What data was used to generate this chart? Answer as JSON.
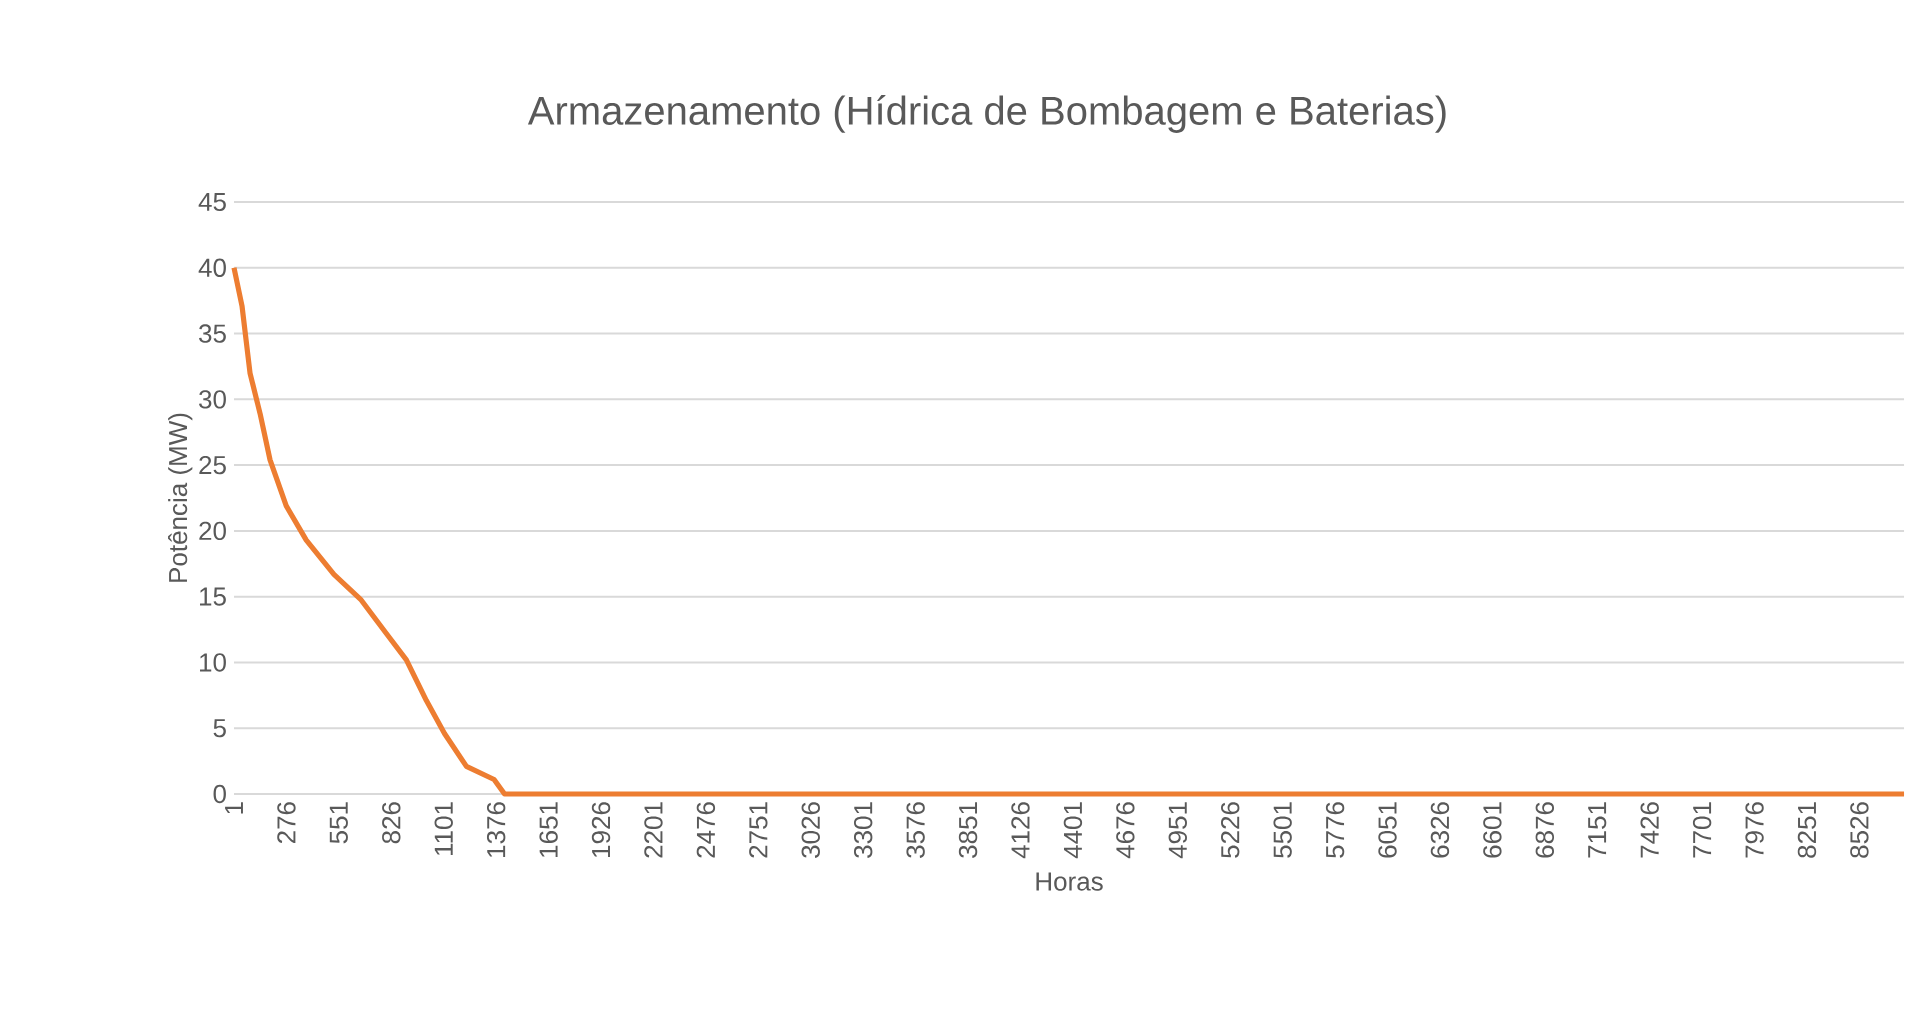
{
  "chart_data": {
    "type": "line",
    "title": "Armazenamento (Hídrica de Bombagem e Baterias)",
    "xlabel": "Horas",
    "ylabel": "Potência (MW)",
    "x": [
      1,
      43,
      85,
      138,
      190,
      275,
      380,
      525,
      665,
      800,
      905,
      1010,
      1105,
      1220,
      1365,
      1420,
      8760
    ],
    "series": [
      {
        "color": "#ed7d31",
        "values": [
          40,
          37.1,
          32.0,
          28.9,
          25.4,
          21.9,
          19.3,
          16.7,
          14.8,
          12.2,
          10.2,
          7.1,
          4.6,
          2.1,
          1.1,
          0,
          0
        ]
      }
    ],
    "xlim": [
      1,
      8760
    ],
    "xticks": [
      1,
      276,
      551,
      826,
      1101,
      1376,
      1651,
      1926,
      2201,
      2476,
      2751,
      3026,
      3301,
      3576,
      3851,
      4126,
      4401,
      4676,
      4951,
      5226,
      5501,
      5776,
      6051,
      6326,
      6601,
      6876,
      7151,
      7426,
      7701,
      7976,
      8251,
      8526
    ],
    "ylim": [
      0,
      45
    ],
    "yticks": [
      0,
      5,
      10,
      15,
      20,
      25,
      30,
      35,
      40,
      45
    ],
    "grid": "y"
  }
}
